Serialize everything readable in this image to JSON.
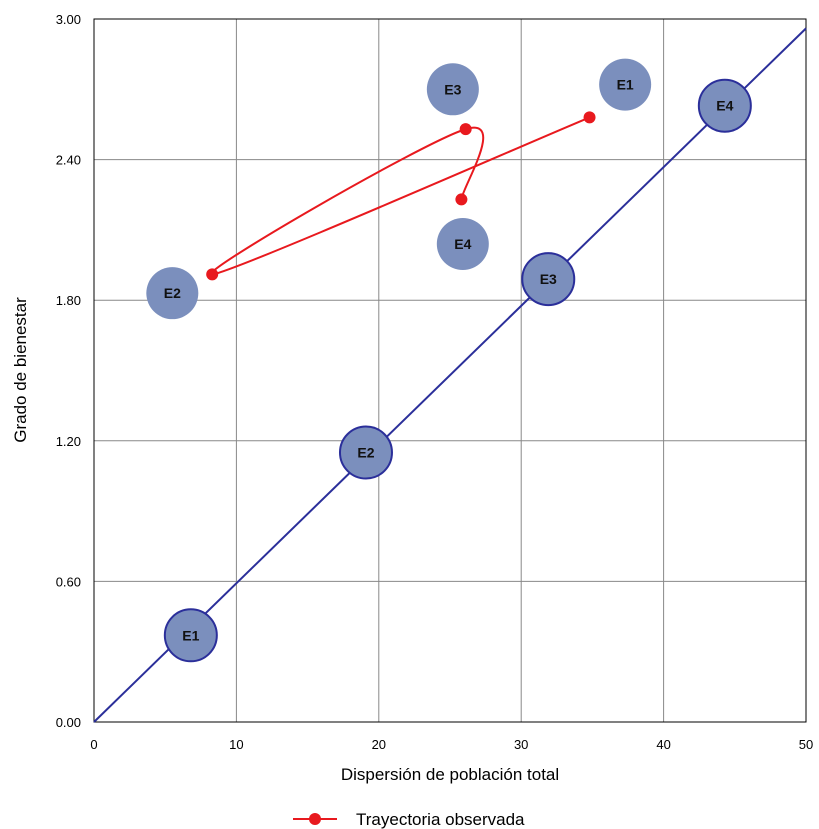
{
  "chart_data": {
    "type": "scatter",
    "title": "",
    "xlabel": "Dispersión de población total",
    "ylabel": "Grado de bienestar",
    "xlim": [
      0,
      50
    ],
    "ylim": [
      0,
      3
    ],
    "x_ticks": [
      "0",
      "10",
      "20",
      "30",
      "40",
      "50"
    ],
    "y_ticks": [
      "0.00",
      "0.60",
      "1.20",
      "1.80",
      "2.40",
      "3.00"
    ],
    "grid": true,
    "reference_line": {
      "from": [
        0,
        0
      ],
      "to": [
        50,
        2.96
      ],
      "color": "#2b2f9a"
    },
    "line_markers": [
      {
        "label": "E1",
        "x": 6.8,
        "y": 0.37
      },
      {
        "label": "E2",
        "x": 19.1,
        "y": 1.15
      },
      {
        "label": "E3",
        "x": 31.9,
        "y": 1.89
      },
      {
        "label": "E4",
        "x": 44.3,
        "y": 2.63
      }
    ],
    "free_markers": [
      {
        "label": "E1",
        "x": 37.3,
        "y": 2.72
      },
      {
        "label": "E2",
        "x": 5.5,
        "y": 1.83
      },
      {
        "label": "E3",
        "x": 25.2,
        "y": 2.7
      },
      {
        "label": "E4",
        "x": 25.9,
        "y": 2.04
      }
    ],
    "series": [
      {
        "name": "Trayectoria observada",
        "color": "#e8191e",
        "points": [
          {
            "x": 34.8,
            "y": 2.58
          },
          {
            "x": 8.3,
            "y": 1.91
          },
          {
            "x": 26.1,
            "y": 2.53
          },
          {
            "x": 25.8,
            "y": 2.23
          }
        ]
      }
    ],
    "legend": {
      "position": "bottom-center",
      "label": "Trayectoria observada"
    },
    "colors": {
      "marker_fill": "#7b8fbd",
      "line": "#2b2f9a",
      "grid": "#888888"
    }
  }
}
